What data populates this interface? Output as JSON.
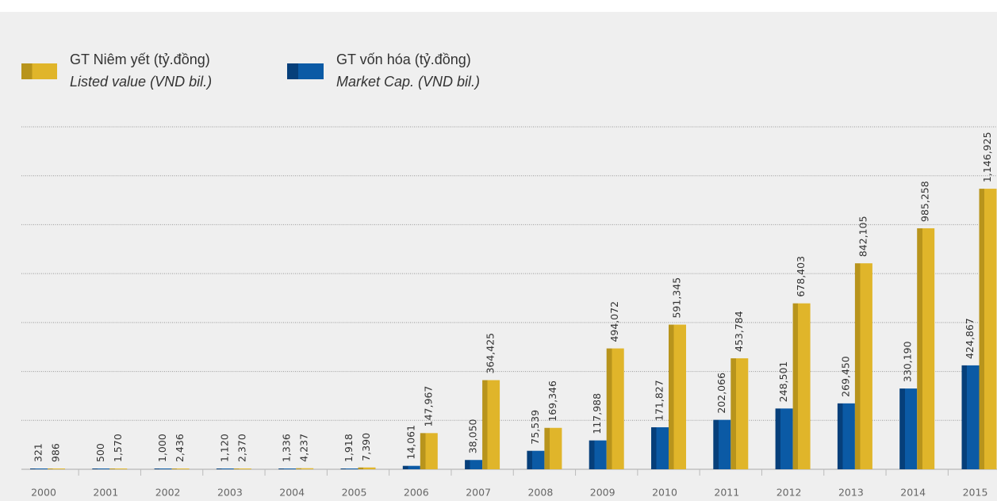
{
  "chart_data": {
    "type": "bar",
    "categories": [
      "2000",
      "2001",
      "2002",
      "2003",
      "2004",
      "2005",
      "2006",
      "2007",
      "2008",
      "2009",
      "2010",
      "2011",
      "2012",
      "2013",
      "2014",
      "2015"
    ],
    "series": [
      {
        "name": "GT vốn hóa (tỷ.đồng)",
        "subname": "Market Cap. (VND bil.)",
        "color": "#0b5aa5",
        "values": [
          321,
          500,
          1000,
          1120,
          1336,
          1918,
          14061,
          38050,
          75539,
          117988,
          171827,
          202066,
          248501,
          269450,
          330190,
          424867
        ],
        "value_labels": [
          "321",
          "500",
          "1,000",
          "1,120",
          "1,336",
          "1,918",
          "14,061",
          "38,050",
          "75,539",
          "117,988",
          "171,827",
          "202,066",
          "248,501",
          "269,450",
          "330,190",
          "424,867"
        ]
      },
      {
        "name": "GT Niêm yết (tỷ.đồng)",
        "subname": "Listed value (VND bil.)",
        "color": "#e0b52a",
        "values": [
          986,
          1570,
          2436,
          2370,
          4237,
          7390,
          147967,
          364425,
          169346,
          494072,
          591345,
          453784,
          678403,
          842105,
          985258,
          1146925
        ],
        "value_labels": [
          "986",
          "1,570",
          "2,436",
          "2,370",
          "4,237",
          "7,390",
          "147,967",
          "364,425",
          "169,346",
          "494,072",
          "591,345",
          "453,784",
          "678,403",
          "842,105",
          "985,258",
          "1,146,925"
        ]
      }
    ],
    "ylim": [
      0,
      1400000
    ],
    "yticks": [
      0,
      200000,
      400000,
      600000,
      800000,
      1000000,
      1200000,
      1400000
    ],
    "grid": true
  }
}
